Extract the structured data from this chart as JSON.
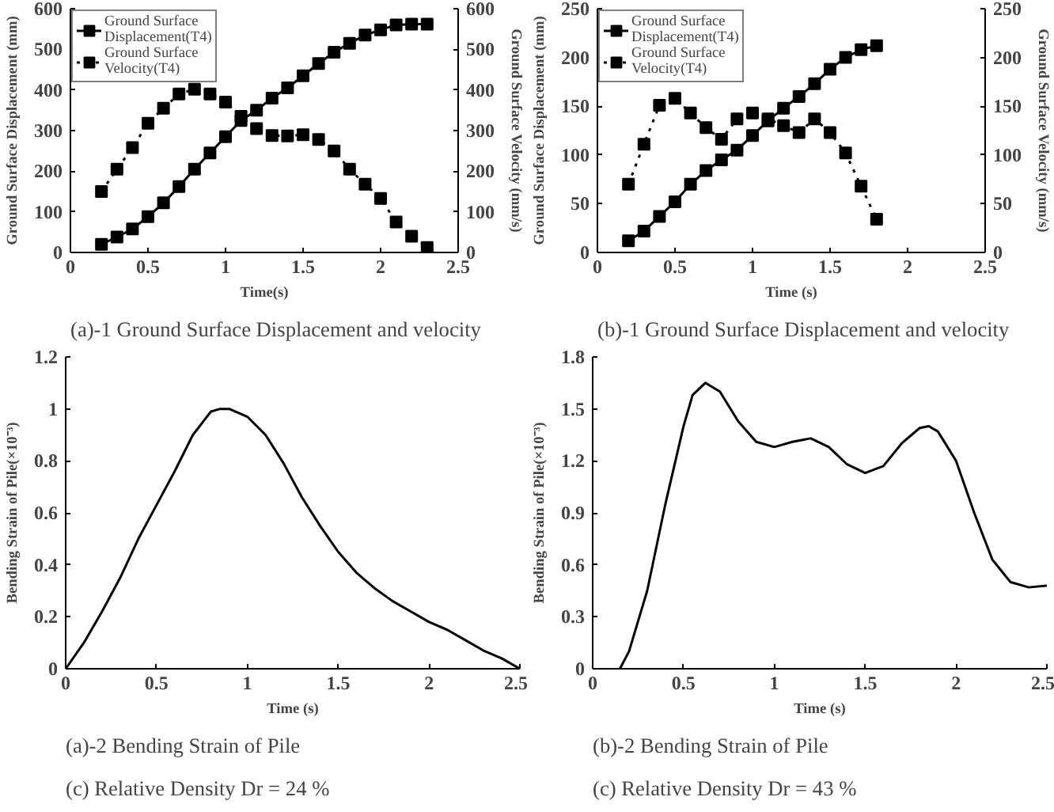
{
  "chart_data": [
    {
      "type": "line",
      "x": [
        0.2,
        0.3,
        0.4,
        0.5,
        0.6,
        0.7,
        0.8,
        0.9,
        1.0,
        1.1,
        1.2,
        1.3,
        1.4,
        1.5,
        1.6,
        1.7,
        1.8,
        1.9,
        2.0,
        2.1,
        2.2,
        2.3
      ],
      "xlim": [
        0,
        2.5
      ],
      "xticks": [
        0,
        0.5,
        1,
        1.5,
        2,
        2.5
      ],
      "ylim": [
        0,
        600
      ],
      "yticks": [
        0,
        100,
        200,
        300,
        400,
        500,
        600
      ],
      "y2lim": [
        0,
        600
      ],
      "y2ticks": [
        0,
        100,
        200,
        300,
        400,
        500,
        600
      ],
      "xlabel": "Time(s)",
      "ylabel": "Ground Surface Displacement (mm)",
      "y2label": "Ground Surface Velocity (mm/s)",
      "marker": "square",
      "legend": "top left",
      "annotations": [
        "(a)-1  Ground Surface Displacement and velocity"
      ],
      "series": [
        {
          "name": "Ground Surface Displacement(T4)",
          "color": "#000000",
          "line_style": "solid",
          "values": [
            20,
            38,
            58,
            88,
            122,
            162,
            205,
            245,
            285,
            325,
            350,
            380,
            405,
            435,
            465,
            493,
            515,
            535,
            548,
            560,
            562,
            562
          ]
        },
        {
          "name": "Ground Surface Velocity(T4)",
          "color": "#000000",
          "line_style": "dotted",
          "axis": "y2",
          "values": [
            150,
            205,
            258,
            318,
            355,
            390,
            402,
            390,
            370,
            335,
            305,
            288,
            287,
            290,
            278,
            250,
            205,
            168,
            133,
            75,
            40,
            12
          ]
        }
      ]
    },
    {
      "type": "line",
      "x": [
        0.2,
        0.3,
        0.4,
        0.5,
        0.6,
        0.7,
        0.8,
        0.9,
        1.0,
        1.1,
        1.2,
        1.3,
        1.4,
        1.5,
        1.6,
        1.7,
        1.8
      ],
      "xlim": [
        0,
        2.5
      ],
      "xticks": [
        0,
        0.5,
        1,
        1.5,
        2,
        2.5
      ],
      "ylim": [
        0,
        250
      ],
      "yticks": [
        0,
        50,
        100,
        150,
        200,
        250
      ],
      "y2lim": [
        0,
        250
      ],
      "y2ticks": [
        0,
        50,
        100,
        150,
        200,
        250
      ],
      "xlabel": "Time (s)",
      "ylabel": "Ground Surface Displacement (mm)",
      "y2label": "Ground Surface Velocity (mm/s)",
      "marker": "square",
      "legend": "top left",
      "annotations": [
        "(b)-1  Ground Surface Displacement and velocity"
      ],
      "series": [
        {
          "name": "Ground Surface Displacement(T4)",
          "color": "#000000",
          "line_style": "solid",
          "values": [
            12,
            22,
            37,
            52,
            70,
            84,
            95,
            105,
            120,
            135,
            148,
            160,
            173,
            188,
            200,
            208,
            212
          ]
        },
        {
          "name": "Ground Surface Velocity(T4)",
          "color": "#000000",
          "line_style": "dotted",
          "axis": "y2",
          "values": [
            70,
            111,
            151,
            158,
            143,
            128,
            116,
            137,
            143,
            137,
            130,
            123,
            137,
            123,
            102,
            68,
            34
          ]
        }
      ]
    },
    {
      "type": "line",
      "x": [
        0,
        0.1,
        0.2,
        0.3,
        0.4,
        0.5,
        0.6,
        0.7,
        0.8,
        0.85,
        0.9,
        1.0,
        1.1,
        1.2,
        1.3,
        1.4,
        1.5,
        1.6,
        1.7,
        1.8,
        1.9,
        2.0,
        2.1,
        2.2,
        2.3,
        2.4,
        2.5
      ],
      "xlim": [
        0,
        2.5
      ],
      "xticks": [
        0,
        0.5,
        1,
        1.5,
        2,
        2.5
      ],
      "ylim": [
        0,
        1.2
      ],
      "yticks": [
        0,
        0.2,
        0.4,
        0.6,
        0.8,
        1,
        1.2
      ],
      "xlabel": "Time (s)",
      "ylabel": "Bending Strain of Pile(×10⁻³)",
      "annotations": [
        "(a)-2  Bending Strain of Pile",
        "(c)  Relative Density Dr = 24 %"
      ],
      "series": [
        {
          "color": "#000000",
          "values": [
            0,
            0.1,
            0.22,
            0.35,
            0.5,
            0.63,
            0.76,
            0.9,
            0.99,
            1.0,
            1.0,
            0.97,
            0.9,
            0.79,
            0.66,
            0.55,
            0.45,
            0.37,
            0.31,
            0.26,
            0.22,
            0.18,
            0.15,
            0.11,
            0.07,
            0.04,
            0
          ]
        }
      ]
    },
    {
      "type": "line",
      "x": [
        0.15,
        0.2,
        0.3,
        0.4,
        0.5,
        0.55,
        0.62,
        0.7,
        0.8,
        0.9,
        1.0,
        1.1,
        1.2,
        1.3,
        1.4,
        1.5,
        1.6,
        1.7,
        1.8,
        1.85,
        1.9,
        2.0,
        2.1,
        2.2,
        2.3,
        2.4,
        2.5
      ],
      "xlim": [
        0,
        2.5
      ],
      "xticks": [
        0,
        0.5,
        1,
        1.5,
        2,
        2.5
      ],
      "ylim": [
        0,
        1.8
      ],
      "yticks": [
        0,
        0.3,
        0.6,
        0.9,
        1.2,
        1.5,
        1.8
      ],
      "xlabel": "Time (s)",
      "ylabel": "Bending Strain of Pile(×10⁻³)",
      "annotations": [
        "(b)-2  Bending Strain of Pile",
        "(c)  Relative Density Dr = 43 %"
      ],
      "series": [
        {
          "color": "#000000",
          "values": [
            0,
            0.1,
            0.45,
            0.95,
            1.4,
            1.58,
            1.65,
            1.6,
            1.43,
            1.31,
            1.28,
            1.31,
            1.33,
            1.28,
            1.18,
            1.13,
            1.17,
            1.3,
            1.39,
            1.4,
            1.37,
            1.2,
            0.9,
            0.63,
            0.5,
            0.47,
            0.48
          ]
        }
      ]
    }
  ]
}
